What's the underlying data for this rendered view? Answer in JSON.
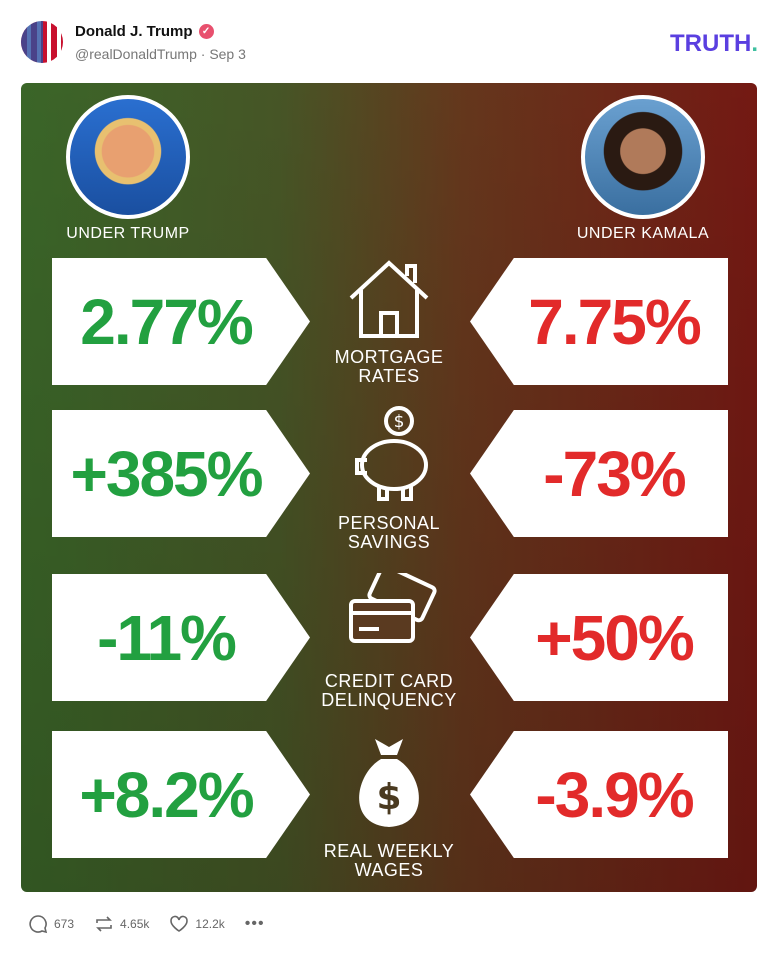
{
  "post": {
    "author": "Donald J. Trump",
    "handle": "@realDonaldTrump",
    "date": "Sep 3",
    "verified": true
  },
  "brand": {
    "logo": "TRUTH",
    "dot": "."
  },
  "infographic": {
    "left_heading": "UNDER TRUMP",
    "right_heading": "UNDER KAMALA",
    "rows": [
      {
        "label1": "MORTGAGE",
        "label2": "RATES",
        "icon": "house-icon",
        "trump": "2.77%",
        "kamala": "7.75%"
      },
      {
        "label1": "PERSONAL",
        "label2": "SAVINGS",
        "icon": "piggy-bank-icon",
        "trump": "+385%",
        "kamala": "-73%"
      },
      {
        "label1": "CREDIT CARD",
        "label2": "DELINQUENCY",
        "icon": "credit-cards-icon",
        "trump": "-11%",
        "kamala": "+50%"
      },
      {
        "label1": "REAL WEEKLY",
        "label2": "WAGES",
        "icon": "money-bag-icon",
        "trump": "+8.2%",
        "kamala": "-3.9%"
      }
    ],
    "colors": {
      "trump": "#22a040",
      "kamala": "#e22a2a"
    }
  },
  "actions": {
    "replies": "673",
    "retruths": "4.65k",
    "likes": "12.2k"
  }
}
